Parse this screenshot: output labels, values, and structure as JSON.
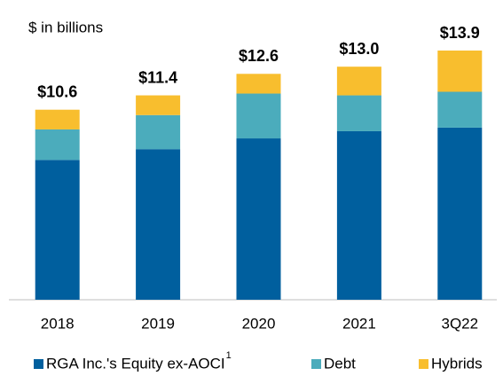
{
  "chart_data": {
    "type": "stacked_bar",
    "subtitle": "$ in billions",
    "categories": [
      "2018",
      "2019",
      "2020",
      "2021",
      "3Q22"
    ],
    "series": [
      {
        "name": "RGA Inc.'s Equity ex-AOCI",
        "name_note": "1",
        "color": "#005f9e",
        "values": [
          7.8,
          8.4,
          9.0,
          9.4,
          9.6
        ]
      },
      {
        "name": "Debt",
        "color": "#4bacbc",
        "values": [
          1.7,
          1.9,
          2.5,
          2.0,
          2.0
        ]
      },
      {
        "name": "Hybrids",
        "color": "#f8be2e",
        "values": [
          1.1,
          1.1,
          1.1,
          1.6,
          2.3
        ]
      }
    ],
    "totals": {
      "values": [
        10.6,
        11.4,
        12.6,
        13.0,
        13.9
      ],
      "value_labels": [
        "$10.6",
        "$11.4",
        "$12.6",
        "$13.0",
        "$13.9"
      ]
    }
  }
}
